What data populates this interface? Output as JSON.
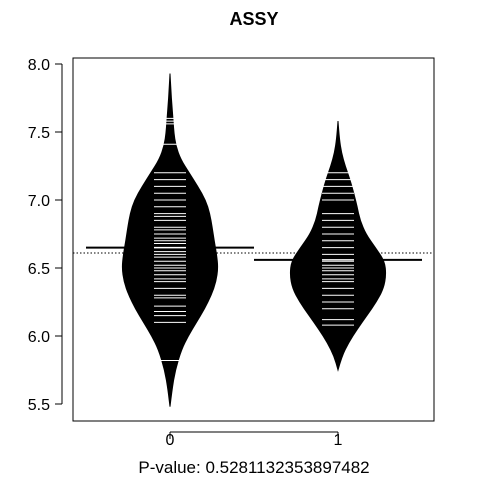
{
  "chart_data": {
    "type": "beanplot",
    "title": "ASSY",
    "xlabel": "P-value: 0.5281132353897482",
    "ylabel": "",
    "categories": [
      "0",
      "1"
    ],
    "ylim": [
      5.4,
      8.05
    ],
    "yticks": [
      5.5,
      6.0,
      6.5,
      7.0,
      7.5,
      8.0
    ],
    "ytick_labels": [
      "5.5",
      "6.0",
      "6.5",
      "7.0",
      "7.5",
      "8.0"
    ],
    "overall_mean": 6.61,
    "group_means": [
      6.65,
      6.56
    ],
    "density_profiles": [
      {
        "category": "0",
        "y": [
          5.48,
          5.6,
          5.75,
          5.9,
          6.0,
          6.1,
          6.2,
          6.3,
          6.4,
          6.5,
          6.6,
          6.7,
          6.8,
          6.9,
          7.0,
          7.1,
          7.2,
          7.3,
          7.4,
          7.5,
          7.6,
          7.7,
          7.8,
          7.93
        ],
        "relative_width": [
          0.0,
          0.04,
          0.11,
          0.24,
          0.38,
          0.55,
          0.72,
          0.86,
          0.96,
          1.0,
          0.97,
          0.92,
          0.88,
          0.83,
          0.74,
          0.58,
          0.4,
          0.22,
          0.12,
          0.08,
          0.06,
          0.04,
          0.02,
          0.0
        ]
      },
      {
        "category": "1",
        "y": [
          5.75,
          5.85,
          5.95,
          6.05,
          6.15,
          6.25,
          6.35,
          6.45,
          6.55,
          6.65,
          6.75,
          6.85,
          6.95,
          7.05,
          7.15,
          7.25,
          7.35,
          7.45,
          7.58
        ],
        "relative_width": [
          0.0,
          0.08,
          0.22,
          0.4,
          0.6,
          0.8,
          0.95,
          1.0,
          0.97,
          0.78,
          0.58,
          0.46,
          0.4,
          0.33,
          0.25,
          0.15,
          0.07,
          0.03,
          0.0
        ]
      }
    ],
    "observations": [
      [
        5.82,
        6.1,
        6.15,
        6.18,
        6.22,
        6.28,
        6.3,
        6.35,
        6.4,
        6.42,
        6.45,
        6.48,
        6.5,
        6.52,
        6.55,
        6.58,
        6.6,
        6.62,
        6.65,
        6.68,
        6.7,
        6.72,
        6.75,
        6.78,
        6.8,
        6.85,
        6.88,
        6.9,
        6.95,
        7.0,
        7.05,
        7.1,
        7.15,
        7.2,
        7.41,
        7.56,
        7.58,
        7.6
      ],
      [
        6.08,
        6.12,
        6.2,
        6.25,
        6.3,
        6.35,
        6.4,
        6.42,
        6.45,
        6.48,
        6.5,
        6.52,
        6.55,
        6.6,
        6.65,
        6.7,
        6.75,
        6.8,
        6.85,
        6.9,
        7.0,
        7.05,
        7.1,
        7.15,
        7.2
      ]
    ]
  }
}
